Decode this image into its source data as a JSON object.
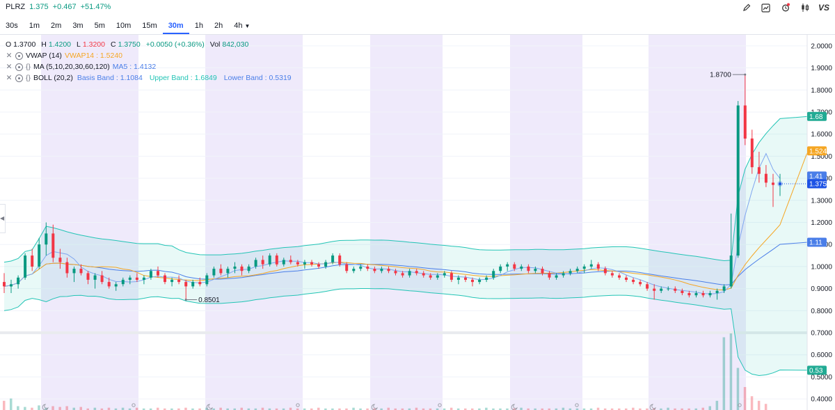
{
  "header": {
    "symbol": "PLRZ",
    "last": "1.375",
    "change": "+0.467",
    "change_pct": "+51.47%",
    "tools": [
      {
        "icon": "pencil-icon"
      },
      {
        "icon": "chart-icon"
      },
      {
        "icon": "alert-icon"
      },
      {
        "icon": "candles-icon"
      },
      {
        "icon": "vs-icon",
        "label": "VS"
      }
    ]
  },
  "intervals": {
    "items": [
      "30s",
      "1m",
      "2m",
      "3m",
      "5m",
      "10m",
      "15m",
      "30m",
      "1h",
      "2h",
      "4h"
    ],
    "active": "30m"
  },
  "ohlc": {
    "o_label": "O",
    "o": "1.3700",
    "h_label": "H",
    "h": "1.4200",
    "l_label": "L",
    "l": "1.3200",
    "c_label": "C",
    "c": "1.3750",
    "chg": "+0.0050 (+0.36%)",
    "vol_label": "Vol",
    "vol": "842,030"
  },
  "indicators": [
    {
      "name": "VWAP (14)",
      "value": "VWAP14 : 1.5240",
      "color": "#f5a623"
    },
    {
      "name": "MA (5,10,20,30,60,120)",
      "value": "MA5 : 1.4132",
      "color": "#4a7ee8"
    },
    {
      "name": "BOLL (20,2)",
      "basis": "Basis Band : 1.1084",
      "upper": "Upper Band : 1.6849",
      "lower": "Lower Band : 0.5319",
      "basis_color": "#4a7ee8",
      "band_color": "#22c4b5"
    }
  ],
  "colors": {
    "up": "#089981",
    "down": "#f23645",
    "vwap": "#f5a623",
    "ma": "#4a7ee8",
    "band": "#22c4b5",
    "night": "#efeafb"
  },
  "chart_data": {
    "type": "candlestick",
    "ylim": [
      0.35,
      2.05
    ],
    "y_ticks": [
      "2.0000",
      "1.9000",
      "1.8000",
      "1.7000",
      "1.6000",
      "1.5000",
      "1.4000",
      "1.3000",
      "1.2000",
      "1.1000",
      "1.0000",
      "0.9000",
      "0.8000",
      "0.7000",
      "0.6000",
      "0.5000",
      "0.4000"
    ],
    "annotations": {
      "high": "1.8700",
      "low": "0.8501"
    },
    "price_tags": [
      {
        "text": "1.68",
        "value": 1.68,
        "color": "#22ab94"
      },
      {
        "text": "1.5240",
        "value": 1.524,
        "color": "#f5a623"
      },
      {
        "text": "1.41",
        "value": 1.41,
        "color": "#4a7ee8"
      },
      {
        "text": "1.3750",
        "value": 1.375,
        "color": "#1e53e5"
      },
      {
        "text": "1.11",
        "value": 1.11,
        "color": "#4a7ee8"
      },
      {
        "text": "0.53",
        "value": 0.53,
        "color": "#22ab94"
      }
    ],
    "ohlc": [
      [
        0.93,
        0.97,
        0.88,
        0.91
      ],
      [
        0.91,
        0.94,
        0.88,
        0.92
      ],
      [
        0.92,
        0.96,
        0.9,
        0.95
      ],
      [
        0.95,
        1.06,
        0.94,
        1.05
      ],
      [
        1.05,
        1.08,
        0.98,
        1.0
      ],
      [
        1.0,
        1.13,
        0.99,
        1.1
      ],
      [
        1.1,
        1.2,
        1.05,
        1.15
      ],
      [
        1.15,
        1.19,
        1.02,
        1.04
      ],
      [
        1.04,
        1.08,
        0.99,
        1.02
      ],
      [
        1.02,
        1.04,
        0.95,
        0.97
      ],
      [
        0.97,
        1.0,
        0.93,
        0.99
      ],
      [
        0.99,
        1.01,
        0.96,
        0.97
      ],
      [
        0.97,
        0.98,
        0.92,
        0.94
      ],
      [
        0.94,
        0.97,
        0.9,
        0.96
      ],
      [
        0.96,
        0.98,
        0.92,
        0.93
      ],
      [
        0.93,
        0.95,
        0.9,
        0.91
      ],
      [
        0.91,
        0.93,
        0.89,
        0.92
      ],
      [
        0.92,
        0.95,
        0.91,
        0.94
      ],
      [
        0.94,
        0.96,
        0.92,
        0.95
      ],
      [
        0.95,
        0.97,
        0.93,
        0.94
      ],
      [
        0.94,
        0.96,
        0.92,
        0.95
      ],
      [
        0.95,
        0.99,
        0.94,
        0.98
      ],
      [
        0.98,
        1.0,
        0.95,
        0.96
      ],
      [
        0.96,
        0.97,
        0.92,
        0.93
      ],
      [
        0.93,
        0.95,
        0.91,
        0.94
      ],
      [
        0.94,
        0.96,
        0.92,
        0.93
      ],
      [
        0.93,
        0.94,
        0.85,
        0.91
      ],
      [
        0.91,
        0.94,
        0.9,
        0.93
      ],
      [
        0.93,
        0.95,
        0.91,
        0.92
      ],
      [
        0.92,
        0.97,
        0.91,
        0.96
      ],
      [
        0.96,
        1.0,
        0.95,
        0.99
      ],
      [
        0.99,
        1.01,
        0.96,
        0.97
      ],
      [
        0.97,
        1.0,
        0.95,
        0.99
      ],
      [
        0.99,
        1.02,
        0.97,
        1.0
      ],
      [
        1.0,
        1.01,
        0.96,
        0.98
      ],
      [
        0.98,
        1.01,
        0.97,
        1.0
      ],
      [
        1.0,
        1.04,
        0.99,
        1.03
      ],
      [
        1.03,
        1.05,
        0.99,
        1.01
      ],
      [
        1.01,
        1.06,
        1.0,
        1.05
      ],
      [
        1.05,
        1.06,
        1.0,
        1.01
      ],
      [
        1.01,
        1.04,
        1.0,
        1.03
      ],
      [
        1.03,
        1.05,
        1.01,
        1.02
      ],
      [
        1.02,
        1.03,
        1.0,
        1.01
      ],
      [
        1.01,
        1.03,
        0.99,
        1.02
      ],
      [
        1.02,
        1.03,
        1.0,
        1.01
      ],
      [
        1.01,
        1.02,
        0.99,
        1.0
      ],
      [
        1.0,
        1.03,
        0.99,
        1.02
      ],
      [
        1.02,
        1.06,
        1.01,
        1.05
      ],
      [
        1.05,
        1.06,
        1.0,
        1.01
      ],
      [
        1.01,
        1.02,
        0.97,
        0.98
      ],
      [
        0.98,
        1.0,
        0.97,
        0.99
      ],
      [
        0.99,
        1.01,
        0.98,
        1.0
      ],
      [
        1.0,
        1.01,
        0.98,
        0.99
      ],
      [
        0.99,
        1.0,
        0.97,
        0.98
      ],
      [
        0.98,
        1.0,
        0.97,
        0.99
      ],
      [
        0.99,
        1.0,
        0.97,
        0.98
      ],
      [
        0.98,
        0.99,
        0.96,
        0.97
      ],
      [
        0.97,
        0.98,
        0.95,
        0.96
      ],
      [
        0.96,
        0.99,
        0.95,
        0.98
      ],
      [
        0.98,
        0.99,
        0.96,
        0.97
      ],
      [
        0.97,
        0.98,
        0.95,
        0.96
      ],
      [
        0.96,
        0.97,
        0.94,
        0.95
      ],
      [
        0.95,
        0.97,
        0.94,
        0.96
      ],
      [
        0.96,
        0.98,
        0.95,
        0.97
      ],
      [
        0.97,
        0.98,
        0.93,
        0.94
      ],
      [
        0.94,
        0.96,
        0.92,
        0.95
      ],
      [
        0.95,
        0.96,
        0.93,
        0.94
      ],
      [
        0.94,
        0.95,
        0.91,
        0.93
      ],
      [
        0.93,
        0.95,
        0.92,
        0.94
      ],
      [
        0.94,
        0.96,
        0.93,
        0.95
      ],
      [
        0.95,
        0.99,
        0.94,
        0.98
      ],
      [
        0.98,
        1.01,
        0.97,
        1.0
      ],
      [
        1.0,
        1.02,
        0.98,
        1.01
      ],
      [
        1.01,
        1.02,
        0.98,
        0.99
      ],
      [
        0.99,
        1.01,
        0.98,
        1.0
      ],
      [
        1.0,
        1.01,
        0.97,
        0.98
      ],
      [
        0.98,
        1.0,
        0.97,
        0.99
      ],
      [
        0.99,
        1.0,
        0.96,
        0.97
      ],
      [
        0.97,
        0.98,
        0.94,
        0.95
      ],
      [
        0.95,
        0.97,
        0.94,
        0.96
      ],
      [
        0.96,
        0.98,
        0.95,
        0.97
      ],
      [
        0.97,
        0.99,
        0.96,
        0.98
      ],
      [
        0.98,
        1.0,
        0.97,
        0.99
      ],
      [
        0.99,
        1.01,
        0.97,
        1.0
      ],
      [
        1.0,
        1.03,
        0.99,
        1.01
      ],
      [
        1.01,
        1.02,
        0.98,
        0.99
      ],
      [
        0.99,
        1.0,
        0.96,
        0.97
      ],
      [
        0.97,
        0.98,
        0.95,
        0.96
      ],
      [
        0.96,
        0.97,
        0.94,
        0.95
      ],
      [
        0.95,
        0.96,
        0.93,
        0.94
      ],
      [
        0.94,
        0.95,
        0.92,
        0.93
      ],
      [
        0.93,
        0.94,
        0.91,
        0.92
      ],
      [
        0.92,
        0.93,
        0.89,
        0.9
      ],
      [
        0.9,
        0.92,
        0.85,
        0.89
      ],
      [
        0.89,
        0.91,
        0.88,
        0.9
      ],
      [
        0.9,
        0.91,
        0.89,
        0.9
      ],
      [
        0.9,
        0.91,
        0.88,
        0.89
      ],
      [
        0.89,
        0.9,
        0.87,
        0.88
      ],
      [
        0.88,
        0.89,
        0.86,
        0.87
      ],
      [
        0.87,
        0.89,
        0.86,
        0.88
      ],
      [
        0.88,
        0.89,
        0.86,
        0.87
      ],
      [
        0.87,
        0.89,
        0.86,
        0.88
      ],
      [
        0.88,
        0.9,
        0.85,
        0.89
      ],
      [
        0.89,
        0.92,
        0.88,
        0.91
      ],
      [
        0.91,
        1.24,
        0.9,
        1.05
      ],
      [
        1.05,
        1.75,
        1.04,
        1.73
      ],
      [
        1.73,
        1.87,
        1.55,
        1.58
      ],
      [
        1.58,
        1.62,
        1.42,
        1.45
      ],
      [
        1.45,
        1.52,
        1.38,
        1.42
      ],
      [
        1.42,
        1.46,
        1.36,
        1.38
      ],
      [
        1.38,
        1.42,
        1.27,
        1.37
      ],
      [
        1.37,
        1.42,
        1.32,
        1.375
      ]
    ],
    "volume": [
      0.12,
      0.15,
      0.05,
      0.04,
      0.03,
      0.06,
      0.03,
      0.05,
      0.04,
      0.05,
      0.03,
      0.04,
      0.02,
      0.03,
      0.02,
      0.03,
      0.02,
      0.03,
      0.02,
      0.03,
      0.02,
      0.02,
      0.03,
      0.02,
      0.02,
      0.02,
      0.03,
      0.02,
      0.02,
      0.03,
      0.02,
      0.03,
      0.02,
      0.02,
      0.03,
      0.02,
      0.02,
      0.03,
      0.02,
      0.02,
      0.02,
      0.03,
      0.02,
      0.02,
      0.02,
      0.03,
      0.02,
      0.02,
      0.02,
      0.02,
      0.03,
      0.02,
      0.02,
      0.02,
      0.02,
      0.03,
      0.02,
      0.02,
      0.02,
      0.03,
      0.02,
      0.02,
      0.02,
      0.02,
      0.03,
      0.02,
      0.02,
      0.02,
      0.02,
      0.03,
      0.02,
      0.02,
      0.02,
      0.02,
      0.03,
      0.02,
      0.02,
      0.02,
      0.02,
      0.02,
      0.03,
      0.02,
      0.02,
      0.02,
      0.02,
      0.03,
      0.02,
      0.02,
      0.02,
      0.02,
      0.03,
      0.02,
      0.02,
      0.02,
      0.02,
      0.03,
      0.02,
      0.02,
      0.02,
      0.02,
      0.03,
      0.05,
      0.12,
      0.95,
      1.0,
      0.55,
      0.3,
      0.18,
      0.12,
      0.08
    ]
  }
}
